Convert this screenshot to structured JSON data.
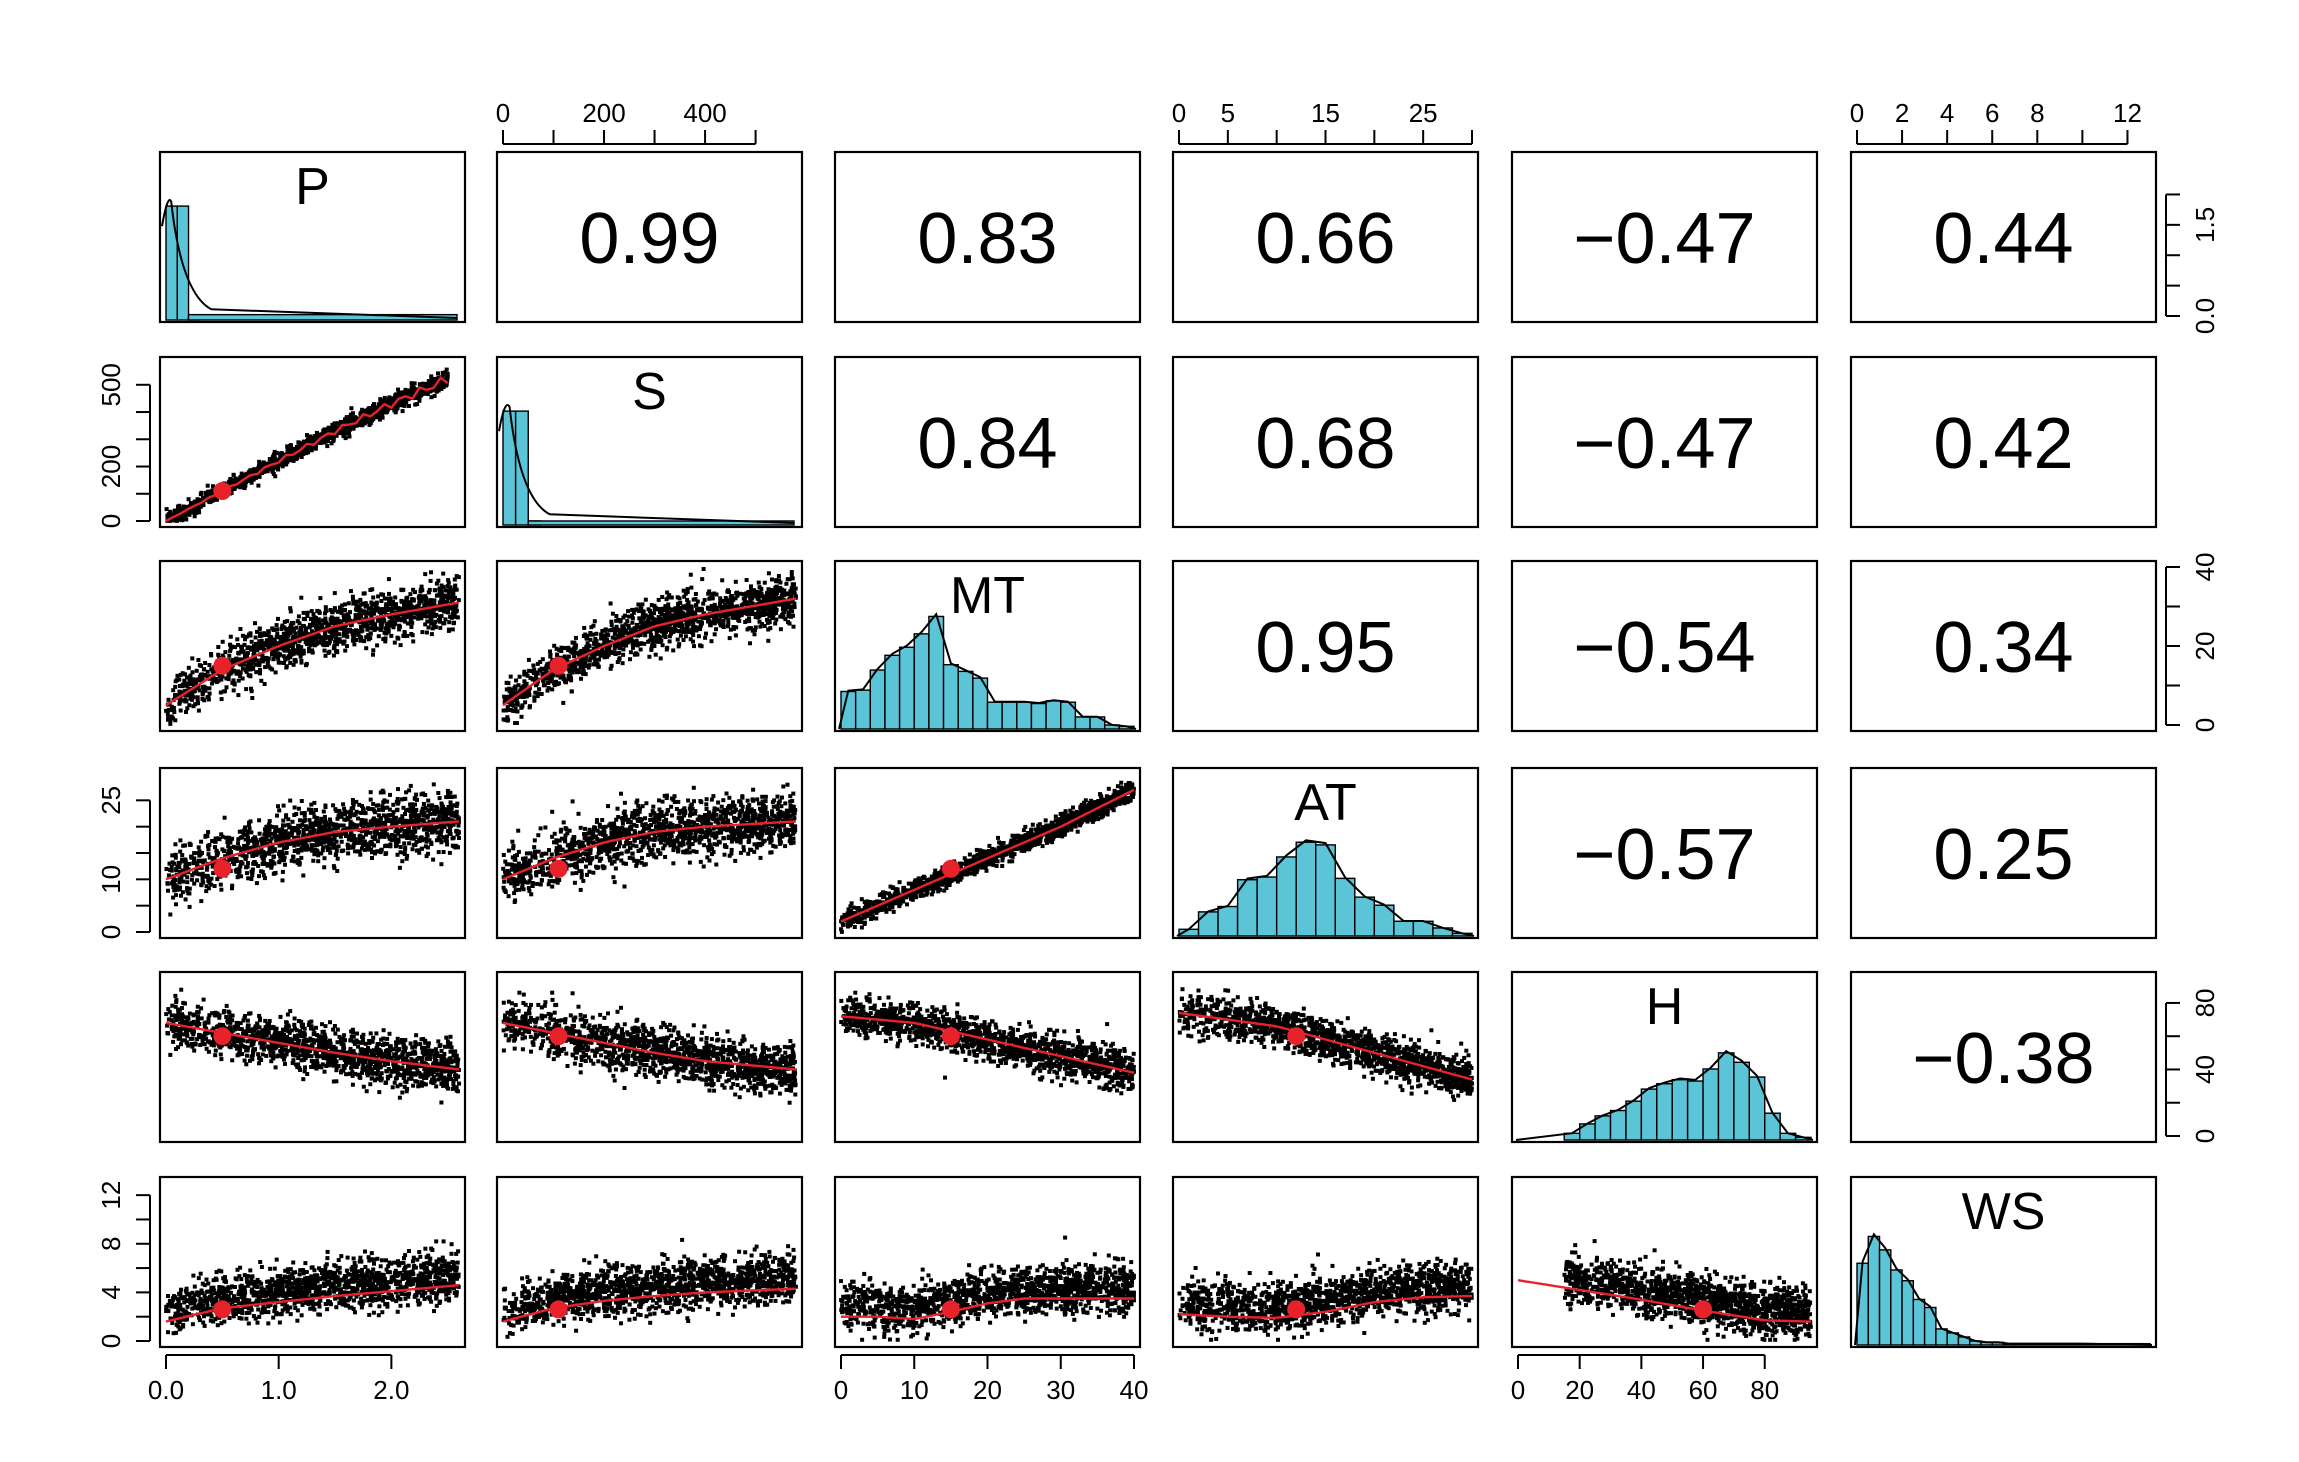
{
  "chart_data": {
    "type": "scatterplot-matrix",
    "variables": [
      "P",
      "S",
      "MT",
      "AT",
      "H",
      "WS"
    ],
    "colors": {
      "histogram": "#5bc4d6",
      "fit_line": "#e8222a",
      "points": "#000000",
      "mean_marker": "#e8222a"
    },
    "correlations": [
      {
        "row": "P",
        "col": "S",
        "label": "0.99"
      },
      {
        "row": "P",
        "col": "MT",
        "label": "0.83"
      },
      {
        "row": "P",
        "col": "AT",
        "label": "0.66"
      },
      {
        "row": "P",
        "col": "H",
        "label": "−0.47"
      },
      {
        "row": "P",
        "col": "WS",
        "label": "0.44"
      },
      {
        "row": "S",
        "col": "MT",
        "label": "0.84"
      },
      {
        "row": "S",
        "col": "AT",
        "label": "0.68"
      },
      {
        "row": "S",
        "col": "H",
        "label": "−0.47"
      },
      {
        "row": "S",
        "col": "WS",
        "label": "0.42"
      },
      {
        "row": "MT",
        "col": "AT",
        "label": "0.95"
      },
      {
        "row": "MT",
        "col": "H",
        "label": "−0.54"
      },
      {
        "row": "MT",
        "col": "WS",
        "label": "0.34"
      },
      {
        "row": "AT",
        "col": "H",
        "label": "−0.57"
      },
      {
        "row": "AT",
        "col": "WS",
        "label": "0.25"
      },
      {
        "row": "H",
        "col": "WS",
        "label": "−0.38"
      }
    ],
    "axes": {
      "P": {
        "range": [
          0,
          2.6
        ],
        "ticks": [
          "0.0",
          "1.0",
          "2.0"
        ],
        "tick_values": [
          0,
          1,
          2
        ],
        "minor_ticks": [],
        "side": "bottom"
      },
      "S": {
        "range": [
          0,
          580
        ],
        "ticks": [
          "0",
          "200",
          "400"
        ],
        "tick_values": [
          0,
          200,
          400
        ],
        "minor_ticks": [
          100,
          300,
          500
        ],
        "side": "top"
      },
      "MT": {
        "range": [
          0,
          40
        ],
        "ticks": [
          "0",
          "10",
          "20",
          "30",
          "40"
        ],
        "tick_values": [
          0,
          10,
          20,
          30,
          40
        ],
        "minor_ticks": [],
        "side": "bottom"
      },
      "AT": {
        "range": [
          0,
          30
        ],
        "ticks": [
          "0",
          "5",
          "15",
          "25"
        ],
        "tick_values": [
          0,
          5,
          15,
          25
        ],
        "minor_ticks": [
          10,
          20,
          30
        ],
        "side": "top"
      },
      "H": {
        "range": [
          0,
          95
        ],
        "ticks": [
          "0",
          "20",
          "40",
          "60",
          "80"
        ],
        "tick_values": [
          0,
          20,
          40,
          60,
          80
        ],
        "minor_ticks": [],
        "side": "bottom"
      },
      "WS": {
        "range": [
          0,
          13
        ],
        "ticks": [
          "0",
          "2",
          "4",
          "6",
          "8",
          "12"
        ],
        "tick_values": [
          0,
          2,
          4,
          6,
          8,
          12
        ],
        "minor_ticks": [
          10
        ],
        "side": "top"
      }
    },
    "left_axes": [
      {
        "row": "S",
        "ticks": [
          "0",
          "200",
          "500"
        ],
        "tick_values": [
          0,
          200,
          500
        ],
        "minor_ticks": [
          100,
          300,
          400
        ]
      },
      {
        "row": "AT",
        "ticks": [
          "0",
          "10",
          "25"
        ],
        "tick_values": [
          0,
          10,
          25
        ],
        "minor_ticks": [
          5,
          15,
          20
        ]
      },
      {
        "row": "WS",
        "ticks": [
          "0",
          "4",
          "8",
          "12"
        ],
        "tick_values": [
          0,
          4,
          8,
          12
        ],
        "minor_ticks": [
          2,
          6,
          10
        ]
      }
    ],
    "right_axes": [
      {
        "row": "P",
        "ticks": [
          "0.0",
          "1.5"
        ],
        "tick_values": [
          0,
          1.5
        ],
        "minor_ticks": [
          0.5,
          1.0,
          2.0
        ],
        "range": [
          0,
          2.6
        ]
      },
      {
        "row": "MT",
        "ticks": [
          "0",
          "20",
          "40"
        ],
        "tick_values": [
          0,
          20,
          40
        ],
        "minor_ticks": [
          10,
          30
        ],
        "range": [
          0,
          40
        ]
      },
      {
        "row": "H",
        "ticks": [
          "0",
          "40",
          "80"
        ],
        "tick_values": [
          0,
          40,
          80
        ],
        "minor_ticks": [
          20,
          60
        ],
        "range": [
          0,
          95
        ]
      }
    ],
    "histograms": {
      "P": {
        "bins": [
          0.0,
          0.1,
          0.2
        ],
        "counts_rel": [
          0.85,
          0.85,
          0.02
        ],
        "tail": {
          "from": 0.2,
          "to": 2.6,
          "rel": 0.04
        }
      },
      "S": {
        "bins": [
          0,
          25,
          50
        ],
        "counts_rel": [
          0.85,
          0.85,
          0.03
        ],
        "tail": {
          "from": 50,
          "to": 580,
          "rel": 0.03
        }
      },
      "MT": {
        "edges": [
          0,
          2,
          4,
          6,
          8,
          10,
          12,
          14,
          16,
          18,
          20,
          22,
          24,
          26,
          28,
          30,
          32,
          34,
          36,
          38,
          40
        ],
        "counts_rel": [
          0.28,
          0.29,
          0.44,
          0.55,
          0.61,
          0.71,
          0.84,
          0.48,
          0.43,
          0.38,
          0.2,
          0.2,
          0.2,
          0.19,
          0.21,
          0.2,
          0.09,
          0.09,
          0.03,
          0.02
        ]
      },
      "AT": {
        "edges": [
          0,
          2,
          4,
          6,
          8,
          10,
          12,
          14,
          16,
          18,
          20,
          22,
          24,
          26,
          28,
          30
        ],
        "counts_rel": [
          0.05,
          0.18,
          0.22,
          0.42,
          0.44,
          0.59,
          0.7,
          0.68,
          0.43,
          0.29,
          0.23,
          0.11,
          0.11,
          0.06,
          0.02
        ]
      },
      "H": {
        "edges": [
          15,
          20,
          25,
          30,
          35,
          40,
          45,
          50,
          55,
          60,
          65,
          70,
          75,
          80,
          85,
          90,
          95
        ],
        "counts_rel": [
          0.05,
          0.12,
          0.18,
          0.22,
          0.29,
          0.38,
          0.42,
          0.45,
          0.44,
          0.53,
          0.65,
          0.58,
          0.47,
          0.2,
          0.05,
          0.02
        ]
      },
      "WS": {
        "edges": [
          0,
          0.5,
          1,
          1.5,
          2,
          2.5,
          3,
          3.5,
          4,
          4.5,
          5,
          5.5,
          6,
          6.5,
          7,
          13
        ],
        "counts_rel": [
          0.61,
          0.81,
          0.71,
          0.56,
          0.48,
          0.34,
          0.28,
          0.12,
          0.09,
          0.06,
          0.03,
          0.02,
          0.02,
          0.01,
          0.01
        ]
      }
    },
    "mean_markers": {
      "P": 0.5,
      "S": 110,
      "MT": 15,
      "AT": 12,
      "H": 60,
      "WS": 2.6
    },
    "fits": {
      "S|P": {
        "x": [
          0,
          0.5,
          1,
          1.5,
          2,
          2.5
        ],
        "y": [
          0,
          110,
          220,
          330,
          430,
          520
        ]
      },
      "MT|P": {
        "x": [
          0,
          0.5,
          1,
          1.5,
          2,
          2.6
        ],
        "y": [
          5,
          14,
          20,
          25,
          28,
          31
        ]
      },
      "MT|S": {
        "x": [
          0,
          100,
          200,
          300,
          400,
          580
        ],
        "y": [
          5,
          14,
          20,
          25,
          28,
          32
        ]
      },
      "AT|P": {
        "x": [
          0,
          0.5,
          1,
          1.5,
          2,
          2.6
        ],
        "y": [
          10,
          14,
          17,
          19,
          20,
          21
        ]
      },
      "AT|S": {
        "x": [
          0,
          100,
          200,
          300,
          400,
          580
        ],
        "y": [
          10,
          14,
          17,
          19,
          20,
          21
        ]
      },
      "AT|MT": {
        "x": [
          0,
          10,
          20,
          30,
          40
        ],
        "y": [
          2,
          8,
          14,
          20,
          27
        ]
      },
      "H|P": {
        "x": [
          0,
          0.5,
          1,
          1.5,
          2,
          2.6
        ],
        "y": [
          68,
          62,
          56,
          50,
          45,
          40
        ]
      },
      "H|S": {
        "x": [
          0,
          100,
          200,
          300,
          400,
          580
        ],
        "y": [
          68,
          62,
          56,
          50,
          45,
          40
        ]
      },
      "H|MT": {
        "x": [
          0,
          10,
          20,
          30,
          40
        ],
        "y": [
          72,
          68,
          58,
          48,
          38
        ]
      },
      "H|AT": {
        "x": [
          0,
          5,
          10,
          15,
          20,
          30
        ],
        "y": [
          74,
          70,
          66,
          58,
          50,
          34
        ]
      },
      "WS|P": {
        "x": [
          0,
          0.5,
          1,
          1.5,
          2,
          2.6
        ],
        "y": [
          1.6,
          2.7,
          3.2,
          3.7,
          4.1,
          4.6
        ]
      },
      "WS|S": {
        "x": [
          0,
          100,
          200,
          300,
          400,
          580
        ],
        "y": [
          1.6,
          2.7,
          3.3,
          3.7,
          4.0,
          4.3
        ]
      },
      "WS|MT": {
        "x": [
          0,
          5,
          10,
          15,
          20,
          25,
          30,
          40
        ],
        "y": [
          2.0,
          2.0,
          1.8,
          2.4,
          3.1,
          3.5,
          3.5,
          3.5
        ]
      },
      "WS|AT": {
        "x": [
          0,
          5,
          10,
          15,
          20,
          25,
          30
        ],
        "y": [
          2.2,
          2.0,
          1.9,
          2.4,
          3.2,
          3.6,
          3.7
        ]
      },
      "WS|H": {
        "x": [
          0,
          20,
          40,
          60,
          80,
          95
        ],
        "y": [
          5.0,
          4.2,
          3.4,
          2.5,
          1.7,
          1.6
        ]
      }
    }
  }
}
